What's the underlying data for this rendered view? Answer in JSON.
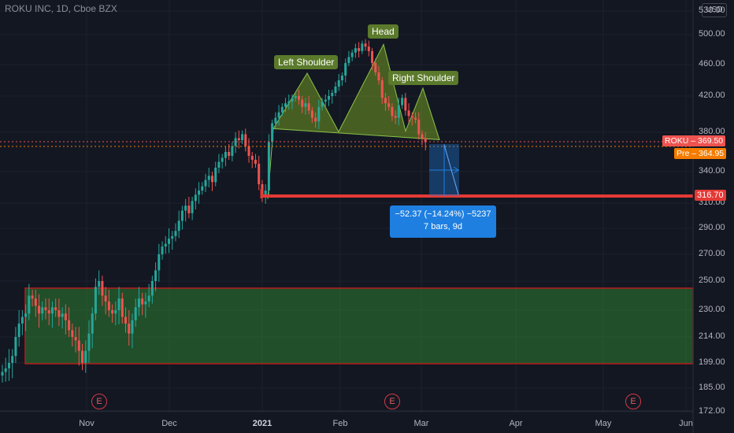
{
  "header": {
    "title": "ROKU INC, 1D, Cboe BZX",
    "currency": "USD"
  },
  "colors": {
    "up": "#26a69a",
    "down": "#ef5350",
    "pattern": "#6b8e23",
    "zone": "#2e7d32",
    "support": "#e53935",
    "measure": "#1e7fe0"
  },
  "chart_data": {
    "type": "candlestick",
    "title": "ROKU INC, 1D, Cboe BZX",
    "y_axis": {
      "ticks": [
        "530.00",
        "500.00",
        "460.00",
        "420.00",
        "380.00",
        "340.00",
        "310.00",
        "290.00",
        "270.00",
        "250.00",
        "230.00",
        "214.00",
        "199.00",
        "185.00",
        "172.00"
      ],
      "ylim": [
        172,
        532
      ]
    },
    "x_axis": {
      "ticks": [
        "Nov",
        "Dec",
        "2021",
        "Feb",
        "Mar",
        "Apr",
        "May",
        "Jun"
      ]
    },
    "candles_close": [
      194,
      196,
      199,
      203,
      214,
      222,
      226,
      228,
      240,
      238,
      233,
      228,
      232,
      230,
      228,
      232,
      230,
      226,
      228,
      224,
      218,
      214,
      212,
      206,
      199,
      206,
      216,
      228,
      246,
      250,
      240,
      236,
      230,
      228,
      230,
      238,
      226,
      222,
      216,
      224,
      232,
      238,
      234,
      236,
      240,
      250,
      258,
      270,
      276,
      278,
      282,
      284,
      288,
      296,
      304,
      308,
      302,
      312,
      318,
      322,
      326,
      332,
      336,
      330,
      344,
      350,
      354,
      360,
      356,
      366,
      374,
      372,
      378,
      366,
      356,
      352,
      348,
      328,
      318,
      322,
      370,
      390,
      396,
      402,
      408,
      412,
      414,
      418,
      420,
      416,
      408,
      412,
      404,
      396,
      392,
      408,
      414,
      416,
      420,
      424,
      432,
      440,
      446,
      462,
      470,
      476,
      482,
      478,
      488,
      484,
      478,
      462,
      450,
      440,
      418,
      412,
      408,
      398,
      396,
      410,
      418,
      404,
      398,
      396,
      394,
      378,
      374,
      370
    ],
    "pattern": {
      "name": "Head and Shoulders",
      "left_shoulder": 449,
      "head": 487,
      "right_shoulder": 430,
      "neckline": 384
    },
    "annotations": {
      "left_shoulder": "Left Shoulder",
      "head": "Head",
      "right_shoulder": "Right Shoulder"
    },
    "last_price": {
      "label": "ROKU",
      "value": "369.50"
    },
    "premarket": {
      "label": "Pre",
      "value": "364.95"
    },
    "support_level": {
      "value": "316.70"
    },
    "zone": {
      "from": 196,
      "to": 244
    },
    "measure": {
      "line1": "−52.37 (−14.24%) −5237",
      "line2": "7 bars, 9d"
    },
    "events": [
      "E",
      "E",
      "E"
    ]
  }
}
